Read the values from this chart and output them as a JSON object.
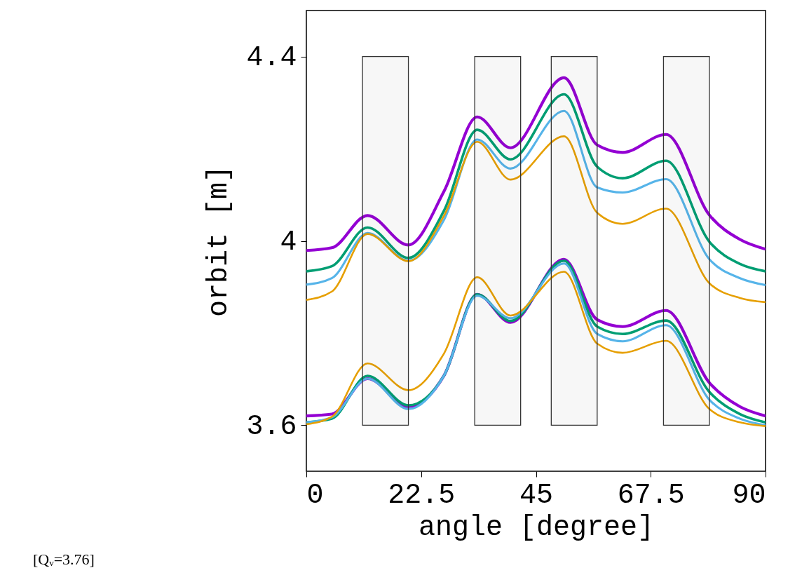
{
  "chart_data": {
    "type": "line",
    "xlabel": "angle [degree]",
    "ylabel": "orbit [m]",
    "xlim": [
      0,
      90
    ],
    "xticks": [
      0,
      22.5,
      45,
      67.5,
      90
    ],
    "ylim": [
      3.5,
      4.5
    ],
    "yticks": [
      3.6,
      4,
      4.4
    ],
    "grid": false,
    "x": [
      0,
      5,
      12,
      20,
      27,
      33.5,
      40,
      50.5,
      57,
      62,
      70.5,
      79,
      85,
      90
    ],
    "series": [
      {
        "color": "#9400d3",
        "values": [
          3.979,
          3.985,
          4.055,
          3.991,
          4.108,
          4.269,
          4.202,
          4.354,
          4.208,
          4.192,
          4.231,
          4.056,
          4.003,
          3.982
        ]
      },
      {
        "color": "#009e73",
        "values": [
          3.934,
          3.945,
          4.029,
          3.963,
          4.066,
          4.241,
          4.177,
          4.318,
          4.161,
          4.136,
          4.174,
          3.998,
          3.95,
          3.934
        ]
      },
      {
        "color": "#56b4e9",
        "values": [
          3.905,
          3.919,
          4.017,
          3.957,
          4.046,
          4.22,
          4.157,
          4.282,
          4.116,
          4.105,
          4.134,
          3.96,
          3.919,
          3.904
        ]
      },
      {
        "color": "#e69f00",
        "values": [
          3.872,
          3.89,
          4.015,
          3.956,
          4.055,
          4.215,
          4.133,
          4.227,
          4.061,
          4.037,
          4.07,
          3.908,
          3.876,
          3.867
        ]
      },
      {
        "color": "#9400d3",
        "values": [
          3.62,
          3.624,
          3.701,
          3.64,
          3.708,
          3.884,
          3.823,
          3.96,
          3.829,
          3.814,
          3.849,
          3.692,
          3.64,
          3.62
        ]
      },
      {
        "color": "#009e73",
        "values": [
          3.606,
          3.614,
          3.707,
          3.643,
          3.708,
          3.884,
          3.826,
          3.957,
          3.814,
          3.798,
          3.827,
          3.672,
          3.624,
          3.606
        ]
      },
      {
        "color": "#56b4e9",
        "values": [
          3.606,
          3.617,
          3.701,
          3.635,
          3.708,
          3.881,
          3.832,
          3.951,
          3.798,
          3.782,
          3.817,
          3.655,
          3.614,
          3.6
        ]
      },
      {
        "color": "#e69f00",
        "values": [
          3.602,
          3.618,
          3.734,
          3.676,
          3.756,
          3.921,
          3.838,
          3.933,
          3.777,
          3.757,
          3.783,
          3.635,
          3.606,
          3.598
        ]
      }
    ],
    "bands": [
      {
        "axis": "x",
        "from": 11,
        "to": 20,
        "color": "#333333"
      },
      {
        "axis": "x",
        "from": 33,
        "to": 42,
        "color": "#333333"
      },
      {
        "axis": "x",
        "from": 48,
        "to": 57,
        "color": "#333333"
      },
      {
        "axis": "x",
        "from": 70,
        "to": 79,
        "color": "#333333"
      }
    ],
    "annotations": [
      "[Qᵥ=3.76]"
    ]
  }
}
